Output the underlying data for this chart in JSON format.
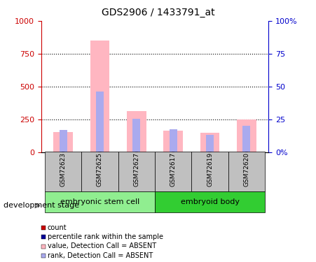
{
  "title": "GDS2906 / 1433791_at",
  "samples": [
    "GSM72623",
    "GSM72625",
    "GSM72627",
    "GSM72617",
    "GSM72619",
    "GSM72620"
  ],
  "groups": [
    {
      "name": "embryonic stem cell",
      "indices": [
        0,
        1,
        2
      ],
      "color": "#90EE90"
    },
    {
      "name": "embryoid body",
      "indices": [
        3,
        4,
        5
      ],
      "color": "#32CD32"
    }
  ],
  "value_absent": [
    150,
    850,
    310,
    165,
    145,
    250
  ],
  "rank_absent": [
    170,
    460,
    255,
    175,
    130,
    200
  ],
  "count_values": [
    5,
    5,
    5,
    5,
    5,
    5
  ],
  "rank_values": [
    5,
    5,
    5,
    5,
    5,
    5
  ],
  "ylim_left": [
    0,
    1000
  ],
  "ylim_right": [
    0,
    100
  ],
  "yticks_left": [
    0,
    250,
    500,
    750,
    1000
  ],
  "yticks_right": [
    0,
    25,
    50,
    75,
    100
  ],
  "ytick_labels_left": [
    "0",
    "250",
    "500",
    "750",
    "1000"
  ],
  "ytick_labels_right": [
    "0%",
    "25",
    "50",
    "75",
    "100%"
  ],
  "bar_width": 0.35,
  "color_value_absent": "#FFB6C1",
  "color_rank_absent": "#AAAAEE",
  "color_count": "#CC0000",
  "color_rank": "#000099",
  "grid_color": "#000000",
  "left_axis_color": "#CC0000",
  "right_axis_color": "#0000CC",
  "bg_color": "#FFFFFF",
  "group_bg_color": "#C0C0C0",
  "development_stage_label": "development stage"
}
